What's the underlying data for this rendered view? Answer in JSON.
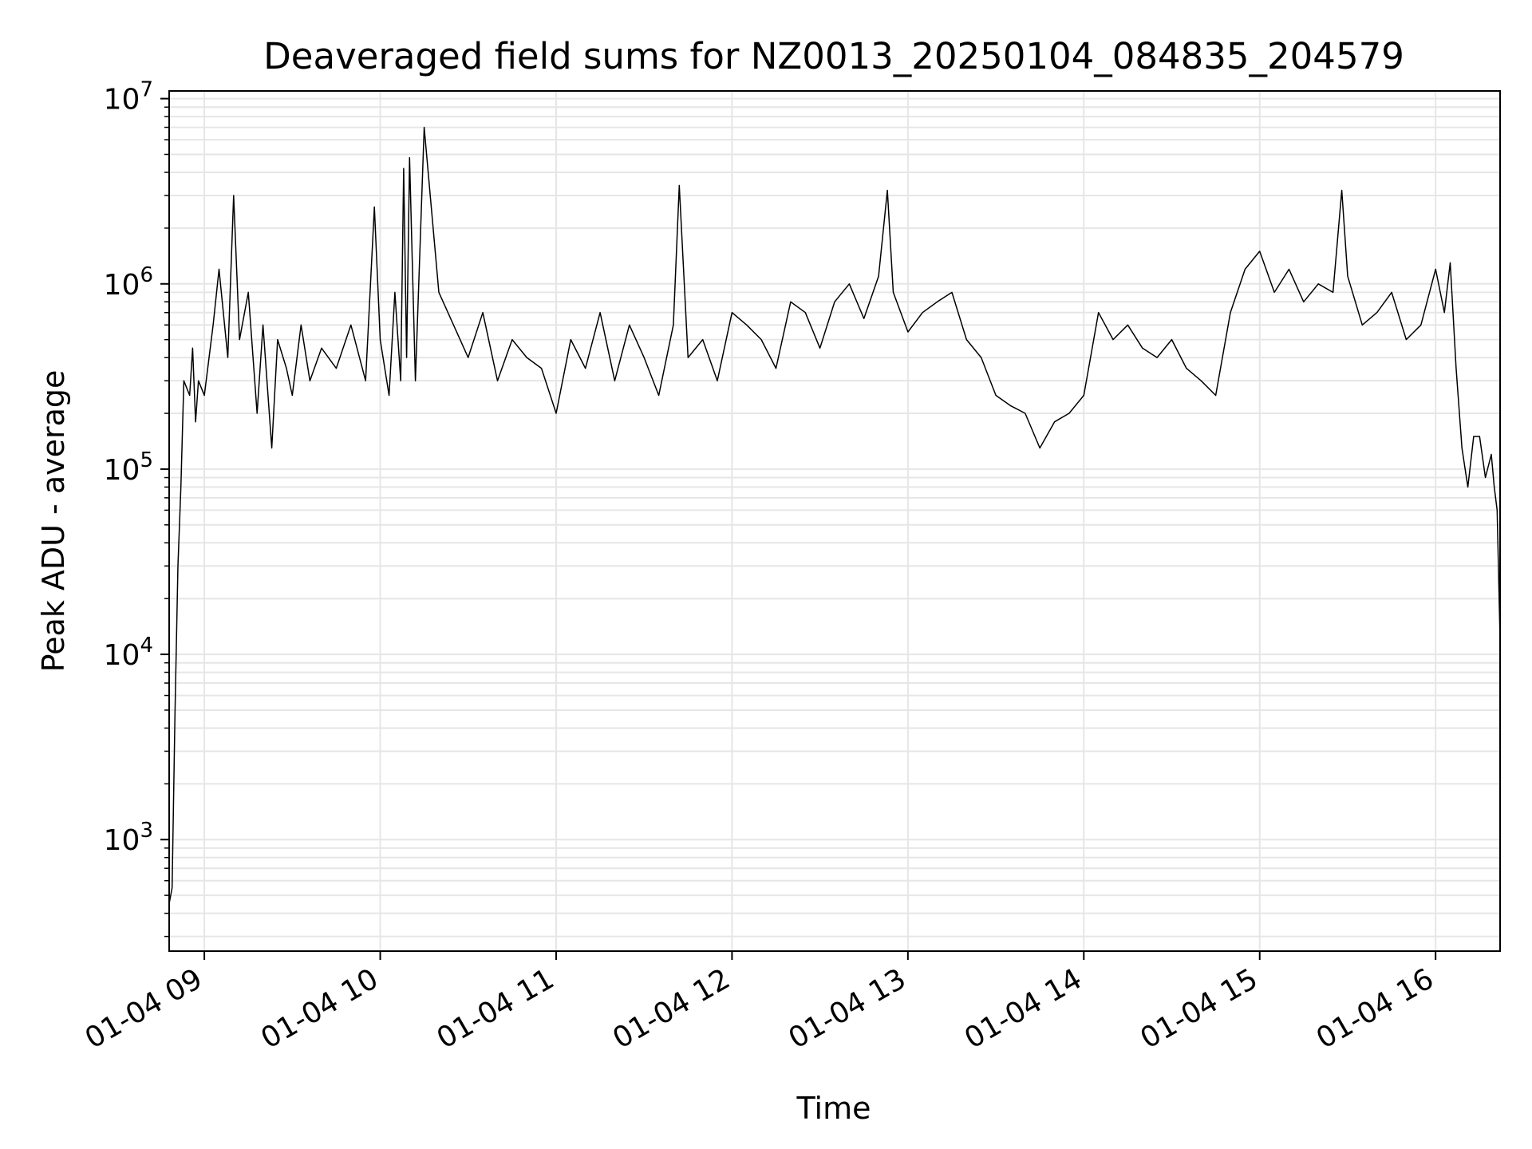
{
  "chart_data": {
    "type": "line",
    "title": "Deaveraged field sums for NZ0013_20250104_084835_204579",
    "xlabel": "Time",
    "ylabel": "Peak ADU - average",
    "yscale": "log",
    "ylim": [
      250,
      11000000
    ],
    "xlim": [
      "2025-01-04 08:48",
      "2025-01-04 16:22"
    ],
    "x_ticks": [
      "01-04 09",
      "01-04 10",
      "01-04 11",
      "01-04 12",
      "01-04 13",
      "01-04 14",
      "01-04 15",
      "01-04 16"
    ],
    "x_tick_times": [
      "2025-01-04 09:00",
      "2025-01-04 10:00",
      "2025-01-04 11:00",
      "2025-01-04 12:00",
      "2025-01-04 13:00",
      "2025-01-04 14:00",
      "2025-01-04 15:00",
      "2025-01-04 16:00"
    ],
    "y_ticks": [
      {
        "value": 1000,
        "base": "10",
        "exp": "3"
      },
      {
        "value": 10000,
        "base": "10",
        "exp": "4"
      },
      {
        "value": 100000,
        "base": "10",
        "exp": "5"
      },
      {
        "value": 1000000,
        "base": "10",
        "exp": "6"
      },
      {
        "value": 10000000,
        "base": "10",
        "exp": "7"
      }
    ],
    "grid": true,
    "line_color": "#000000",
    "grid_color": "#e6e6e6",
    "series": [
      {
        "x": [
          "2025-01-04 08:48",
          "2025-01-04 08:49",
          "2025-01-04 08:50",
          "2025-01-04 08:51",
          "2025-01-04 08:52",
          "2025-01-04 08:53",
          "2025-01-04 08:55",
          "2025-01-04 08:56",
          "2025-01-04 08:57",
          "2025-01-04 08:58",
          "2025-01-04 09:00",
          "2025-01-04 09:03",
          "2025-01-04 09:05",
          "2025-01-04 09:08",
          "2025-01-04 09:10",
          "2025-01-04 09:12",
          "2025-01-04 09:15",
          "2025-01-04 09:18",
          "2025-01-04 09:20",
          "2025-01-04 09:23",
          "2025-01-04 09:25",
          "2025-01-04 09:28",
          "2025-01-04 09:30",
          "2025-01-04 09:33",
          "2025-01-04 09:36",
          "2025-01-04 09:40",
          "2025-01-04 09:45",
          "2025-01-04 09:50",
          "2025-01-04 09:55",
          "2025-01-04 09:58",
          "2025-01-04 10:00",
          "2025-01-04 10:03",
          "2025-01-04 10:05",
          "2025-01-04 10:07",
          "2025-01-04 10:08",
          "2025-01-04 10:09",
          "2025-01-04 10:10",
          "2025-01-04 10:12",
          "2025-01-04 10:15",
          "2025-01-04 10:20",
          "2025-01-04 10:25",
          "2025-01-04 10:30",
          "2025-01-04 10:35",
          "2025-01-04 10:40",
          "2025-01-04 10:45",
          "2025-01-04 10:50",
          "2025-01-04 10:55",
          "2025-01-04 11:00",
          "2025-01-04 11:05",
          "2025-01-04 11:10",
          "2025-01-04 11:15",
          "2025-01-04 11:20",
          "2025-01-04 11:25",
          "2025-01-04 11:30",
          "2025-01-04 11:35",
          "2025-01-04 11:40",
          "2025-01-04 11:42",
          "2025-01-04 11:45",
          "2025-01-04 11:50",
          "2025-01-04 11:55",
          "2025-01-04 12:00",
          "2025-01-04 12:05",
          "2025-01-04 12:10",
          "2025-01-04 12:15",
          "2025-01-04 12:20",
          "2025-01-04 12:25",
          "2025-01-04 12:30",
          "2025-01-04 12:35",
          "2025-01-04 12:40",
          "2025-01-04 12:45",
          "2025-01-04 12:50",
          "2025-01-04 12:53",
          "2025-01-04 12:55",
          "2025-01-04 13:00",
          "2025-01-04 13:05",
          "2025-01-04 13:10",
          "2025-01-04 13:15",
          "2025-01-04 13:20",
          "2025-01-04 13:25",
          "2025-01-04 13:30",
          "2025-01-04 13:35",
          "2025-01-04 13:40",
          "2025-01-04 13:45",
          "2025-01-04 13:50",
          "2025-01-04 13:55",
          "2025-01-04 14:00",
          "2025-01-04 14:05",
          "2025-01-04 14:10",
          "2025-01-04 14:15",
          "2025-01-04 14:20",
          "2025-01-04 14:25",
          "2025-01-04 14:30",
          "2025-01-04 14:35",
          "2025-01-04 14:40",
          "2025-01-04 14:45",
          "2025-01-04 14:50",
          "2025-01-04 14:55",
          "2025-01-04 15:00",
          "2025-01-04 15:05",
          "2025-01-04 15:10",
          "2025-01-04 15:15",
          "2025-01-04 15:20",
          "2025-01-04 15:25",
          "2025-01-04 15:28",
          "2025-01-04 15:30",
          "2025-01-04 15:35",
          "2025-01-04 15:40",
          "2025-01-04 15:45",
          "2025-01-04 15:50",
          "2025-01-04 15:55",
          "2025-01-04 16:00",
          "2025-01-04 16:03",
          "2025-01-04 16:05",
          "2025-01-04 16:07",
          "2025-01-04 16:09",
          "2025-01-04 16:11",
          "2025-01-04 16:13",
          "2025-01-04 16:15",
          "2025-01-04 16:17",
          "2025-01-04 16:19",
          "2025-01-04 16:20",
          "2025-01-04 16:21",
          "2025-01-04 16:22"
        ],
        "values": [
          450,
          550,
          4800,
          30000,
          80000,
          300000,
          250000,
          450000,
          180000,
          300000,
          250000,
          600000,
          1200000,
          400000,
          3000000,
          500000,
          900000,
          200000,
          600000,
          130000,
          500000,
          350000,
          250000,
          600000,
          300000,
          450000,
          350000,
          600000,
          300000,
          2600000,
          500000,
          250000,
          900000,
          300000,
          4200000,
          400000,
          4800000,
          300000,
          7000000,
          900000,
          600000,
          400000,
          700000,
          300000,
          500000,
          400000,
          350000,
          200000,
          500000,
          350000,
          700000,
          300000,
          600000,
          400000,
          250000,
          600000,
          3400000,
          400000,
          500000,
          300000,
          700000,
          600000,
          500000,
          350000,
          800000,
          700000,
          450000,
          800000,
          1000000,
          650000,
          1100000,
          3200000,
          900000,
          550000,
          700000,
          800000,
          900000,
          500000,
          400000,
          250000,
          220000,
          200000,
          130000,
          180000,
          200000,
          250000,
          700000,
          500000,
          600000,
          450000,
          400000,
          500000,
          350000,
          300000,
          250000,
          700000,
          1200000,
          1500000,
          900000,
          1200000,
          800000,
          1000000,
          900000,
          3200000,
          1100000,
          600000,
          700000,
          900000,
          500000,
          600000,
          1200000,
          700000,
          1300000,
          350000,
          130000,
          80000,
          150000,
          150000,
          90000,
          120000,
          80000,
          60000,
          12000
        ]
      }
    ]
  }
}
